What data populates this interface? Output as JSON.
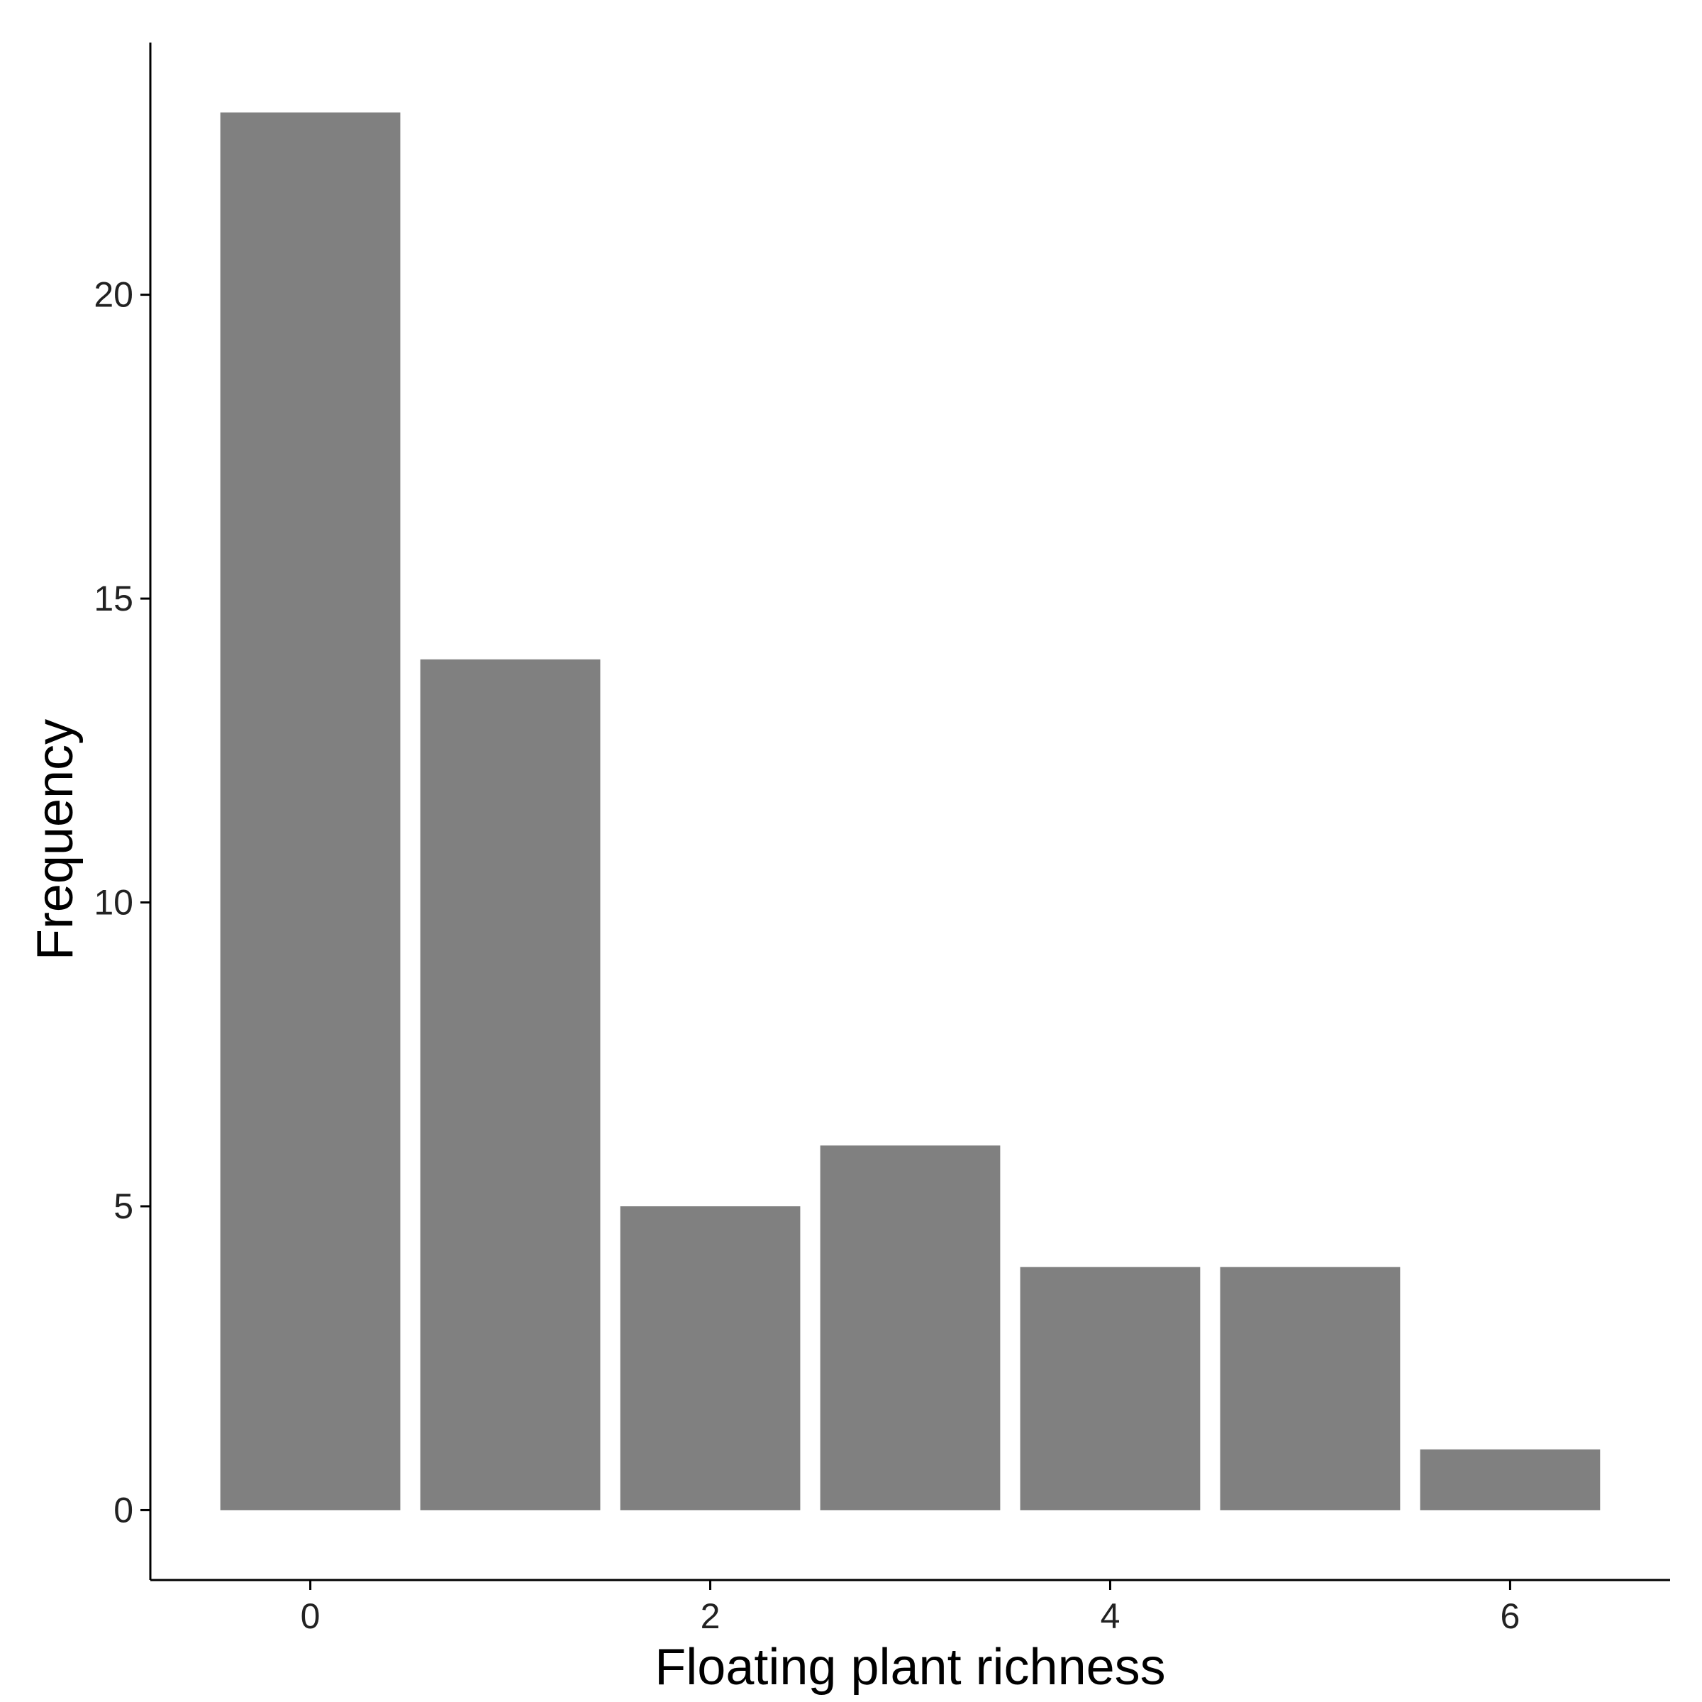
{
  "chart_data": {
    "type": "bar",
    "x": [
      0,
      1,
      2,
      3,
      4,
      5,
      6
    ],
    "values": [
      23,
      14,
      5,
      6,
      4,
      4,
      1
    ],
    "xlabel": "Floating plant richness",
    "ylabel": "Frequency",
    "x_ticks": [
      0,
      2,
      4,
      6
    ],
    "y_ticks": [
      0,
      5,
      10,
      15,
      20
    ],
    "xlim": [
      -0.8,
      6.8
    ],
    "ylim": [
      -1.15,
      24.15
    ],
    "bar_color": "#808080",
    "grid": false,
    "legend": "none"
  }
}
